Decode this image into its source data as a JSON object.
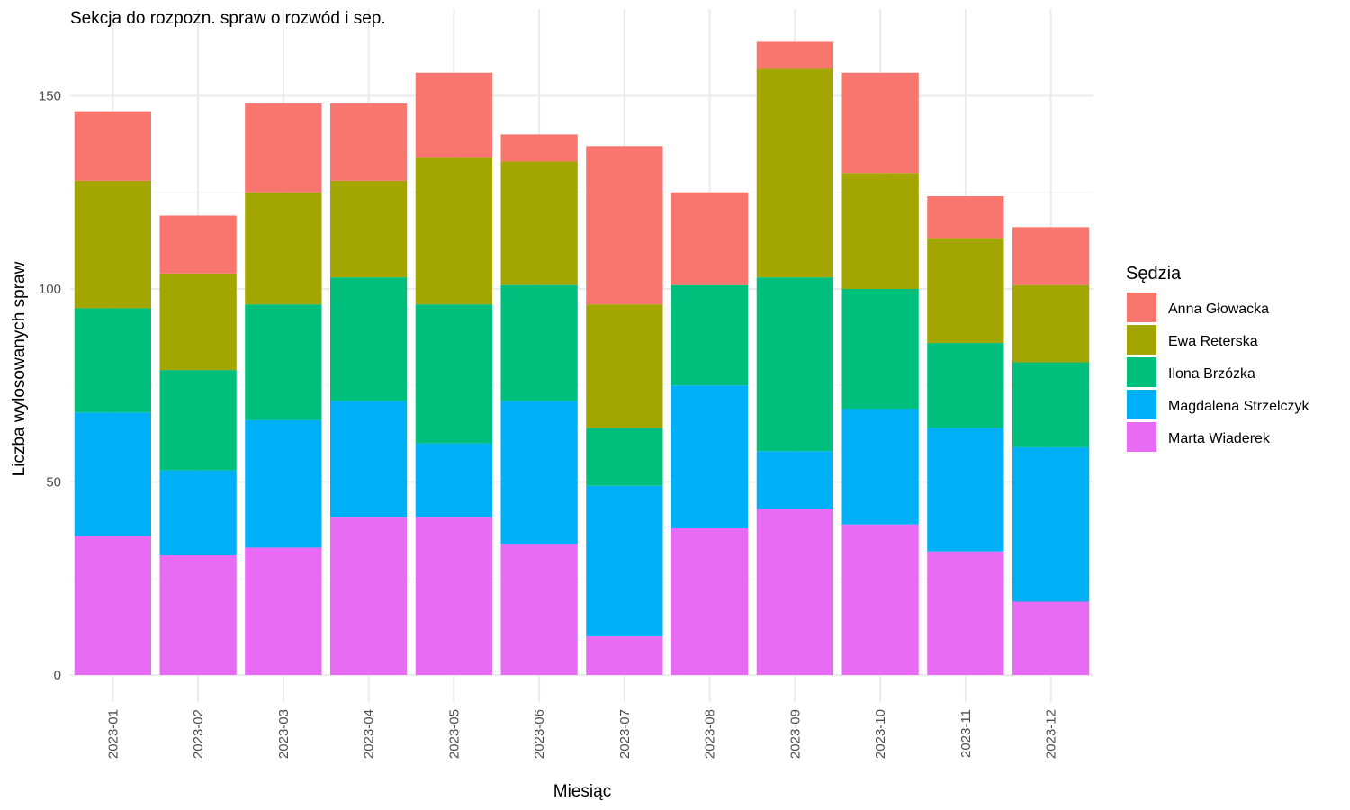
{
  "chart_data": {
    "type": "bar",
    "stacked": true,
    "title": "Sekcja do rozpozn. spraw o rozwód i sep.",
    "xlabel": "Miesiąc",
    "ylabel": "Liczba wylosowanych spraw",
    "ylim": [
      0,
      165
    ],
    "yticks": [
      0,
      50,
      100,
      150
    ],
    "grid": true,
    "legend_title": "Sędzia",
    "legend_position": "right",
    "categories": [
      "2023-01",
      "2023-02",
      "2023-03",
      "2023-04",
      "2023-05",
      "2023-06",
      "2023-07",
      "2023-08",
      "2023-09",
      "2023-10",
      "2023-11",
      "2023-12"
    ],
    "series": [
      {
        "name": "Marta Wiaderek",
        "color": "#E76BF3",
        "values": [
          36,
          31,
          33,
          41,
          41,
          34,
          10,
          38,
          43,
          39,
          32,
          19
        ]
      },
      {
        "name": "Magdalena Strzelczyk",
        "color": "#00B0F6",
        "values": [
          32,
          22,
          33,
          30,
          19,
          37,
          39,
          37,
          15,
          30,
          32,
          40
        ]
      },
      {
        "name": "Ilona Brzózka",
        "color": "#00BF7D",
        "values": [
          27,
          26,
          30,
          32,
          36,
          30,
          15,
          26,
          45,
          31,
          22,
          22
        ]
      },
      {
        "name": "Ewa Reterska",
        "color": "#A3A500",
        "values": [
          33,
          25,
          29,
          25,
          38,
          32,
          32,
          0,
          54,
          30,
          27,
          20
        ]
      },
      {
        "name": "Anna Głowacka",
        "color": "#F8766D",
        "values": [
          18,
          15,
          23,
          20,
          22,
          7,
          41,
          24,
          7,
          26,
          11,
          15
        ]
      }
    ],
    "legend_order": [
      "Anna Głowacka",
      "Ewa Reterska",
      "Ilona Brzózka",
      "Magdalena Strzelczyk",
      "Marta Wiaderek"
    ]
  }
}
